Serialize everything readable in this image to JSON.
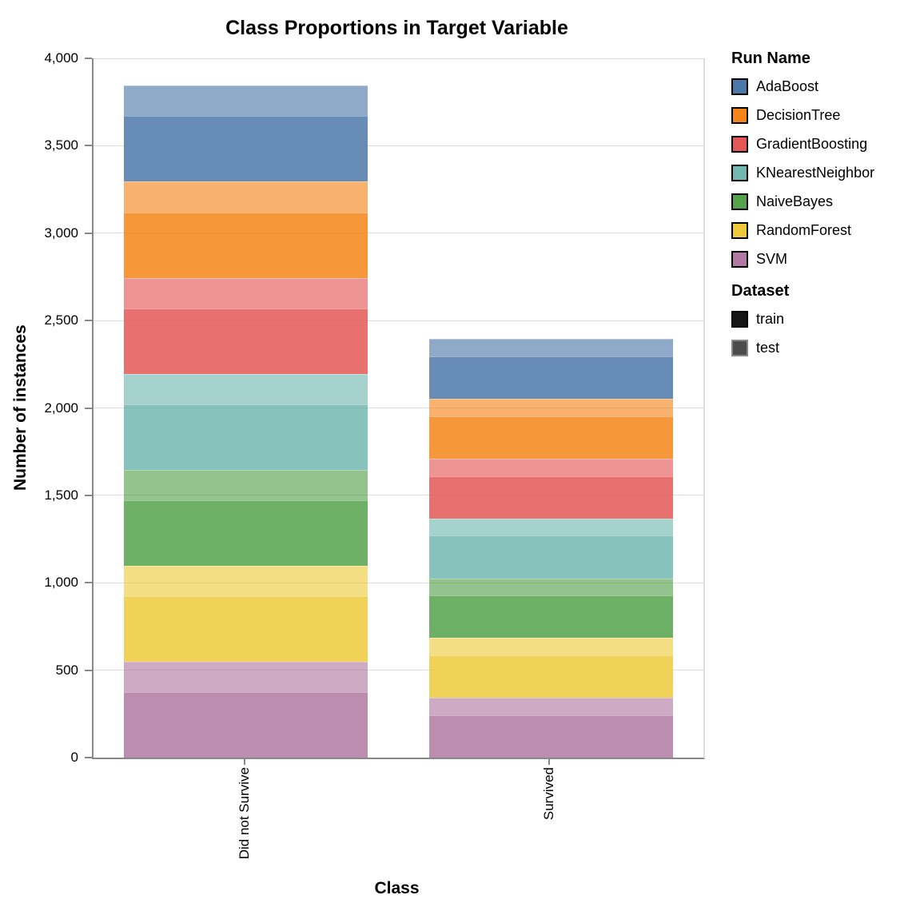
{
  "title": "Class Proportions in Target Variable",
  "chart_data": {
    "type": "bar",
    "stacked": true,
    "title": "Class Proportions in Target Variable",
    "xlabel": "Class",
    "ylabel": "Number of instances",
    "ylim": [
      0,
      4000
    ],
    "grid": true,
    "legend_position": "right",
    "categories": [
      "Did not Survive",
      "Survived"
    ],
    "yticks": [
      {
        "value": 0,
        "label": "0"
      },
      {
        "value": 500,
        "label": "500"
      },
      {
        "value": 1000,
        "label": "1,000"
      },
      {
        "value": 1500,
        "label": "1,500"
      },
      {
        "value": 2000,
        "label": "2,000"
      },
      {
        "value": 2500,
        "label": "2,500"
      },
      {
        "value": 3000,
        "label": "3,000"
      },
      {
        "value": 3500,
        "label": "3,500"
      },
      {
        "value": 4000,
        "label": "4,000"
      }
    ],
    "series": [
      {
        "run": "AdaBoost",
        "dataset": "test",
        "values": [
          174,
          99
        ]
      },
      {
        "run": "AdaBoost",
        "dataset": "train",
        "values": [
          375,
          243
        ]
      },
      {
        "run": "DecisionTree",
        "dataset": "test",
        "values": [
          174,
          99
        ]
      },
      {
        "run": "DecisionTree",
        "dataset": "train",
        "values": [
          375,
          243
        ]
      },
      {
        "run": "GradientBoosting",
        "dataset": "test",
        "values": [
          174,
          99
        ]
      },
      {
        "run": "GradientBoosting",
        "dataset": "train",
        "values": [
          375,
          243
        ]
      },
      {
        "run": "KNearestNeighbor",
        "dataset": "test",
        "values": [
          174,
          99
        ]
      },
      {
        "run": "KNearestNeighbor",
        "dataset": "train",
        "values": [
          375,
          243
        ]
      },
      {
        "run": "NaiveBayes",
        "dataset": "test",
        "values": [
          174,
          99
        ]
      },
      {
        "run": "NaiveBayes",
        "dataset": "train",
        "values": [
          375,
          243
        ]
      },
      {
        "run": "RandomForest",
        "dataset": "test",
        "values": [
          174,
          99
        ]
      },
      {
        "run": "RandomForest",
        "dataset": "train",
        "values": [
          375,
          243
        ]
      },
      {
        "run": "SVM",
        "dataset": "test",
        "values": [
          174,
          99
        ]
      },
      {
        "run": "SVM",
        "dataset": "train",
        "values": [
          375,
          243
        ]
      }
    ],
    "category_totals": [
      3843,
      2394
    ]
  },
  "legend": {
    "run_title": "Run Name",
    "runs": [
      {
        "label": "AdaBoost",
        "color": "#4C78A8"
      },
      {
        "label": "DecisionTree",
        "color": "#F58518"
      },
      {
        "label": "GradientBoosting",
        "color": "#E45756"
      },
      {
        "label": "KNearestNeighbor",
        "color": "#72B7B2"
      },
      {
        "label": "NaiveBayes",
        "color": "#54A24B"
      },
      {
        "label": "RandomForest",
        "color": "#EECA3B"
      },
      {
        "label": "SVM",
        "color": "#B279A2"
      }
    ],
    "dataset_title": "Dataset",
    "datasets": [
      {
        "label": "train",
        "fill": "#151515",
        "border": "#000000"
      },
      {
        "label": "test",
        "fill": "#4C4C4C",
        "border": "#888888"
      }
    ]
  },
  "colors": {
    "run_base": {
      "AdaBoost": "#4C78A8",
      "DecisionTree": "#F58518",
      "GradientBoosting": "#E45756",
      "KNearestNeighbor": "#72B7B2",
      "NaiveBayes": "#54A24B",
      "RandomForest": "#EECA3B",
      "SVM": "#B279A2"
    },
    "dataset_opacity": {
      "train": 0.85,
      "test": 0.63
    },
    "grid": "#DDDDDD",
    "axis": "#888888",
    "text": "#000000",
    "background": "#FFFFFF"
  }
}
